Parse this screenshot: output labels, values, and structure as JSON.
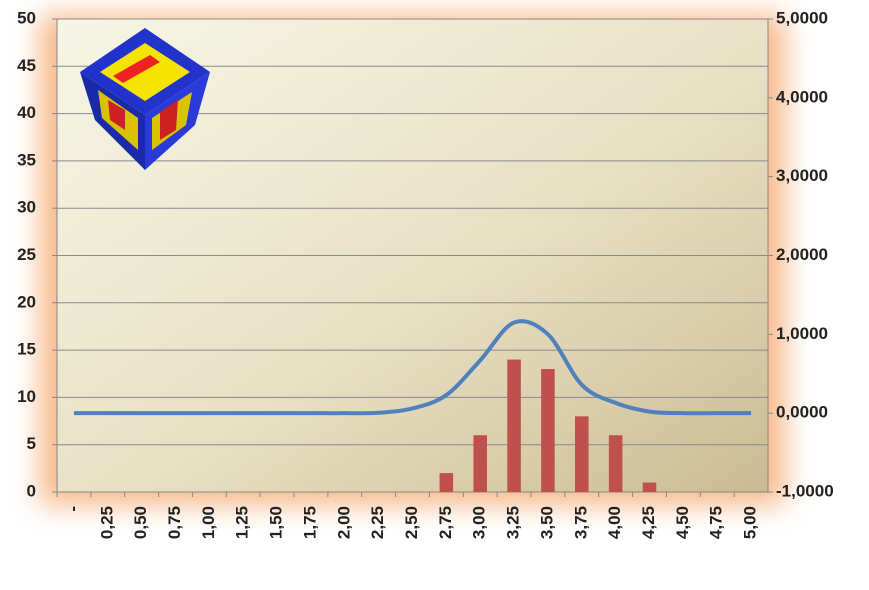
{
  "chart_data": {
    "type": "bar_line",
    "categories": [
      "-",
      "0,25",
      "0,50",
      "0,75",
      "1,00",
      "1,25",
      "1,50",
      "1,75",
      "2,00",
      "2,25",
      "2,50",
      "2,75",
      "3,00",
      "3,25",
      "3,50",
      "3,75",
      "4,00",
      "4,25",
      "4,50",
      "4,75",
      "5,00"
    ],
    "series": [
      {
        "type": "bar",
        "color": "#c0504d",
        "values": [
          0,
          0,
          0,
          0,
          0,
          0,
          0,
          0,
          0,
          0,
          0,
          2,
          6,
          14,
          13,
          8,
          6,
          1,
          0,
          0,
          0
        ]
      },
      {
        "type": "line",
        "axis": "y2",
        "color": "#4f81bd",
        "values": [
          0,
          0,
          0,
          0,
          0,
          0,
          0,
          0,
          0,
          0.005,
          0.06,
          0.23,
          0.67,
          1.15,
          1.0,
          0.36,
          0.13,
          0.02,
          0,
          0,
          0
        ]
      }
    ],
    "ylim": [
      0,
      50
    ],
    "yticks": [
      0,
      5,
      10,
      15,
      20,
      25,
      30,
      35,
      40,
      45,
      50
    ],
    "y2lim": [
      -1,
      5
    ],
    "y2ticks": [
      {
        "value": -1,
        "label": "-1,0000"
      },
      {
        "value": 0,
        "label": "0,0000"
      },
      {
        "value": 1,
        "label": "1,0000"
      },
      {
        "value": 2,
        "label": "2,0000"
      },
      {
        "value": 3,
        "label": "3,0000"
      },
      {
        "value": 4,
        "label": "4,0000"
      },
      {
        "value": 5,
        "label": "5,0000"
      }
    ],
    "grid": true
  }
}
